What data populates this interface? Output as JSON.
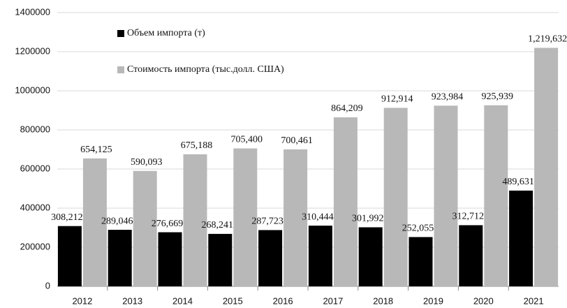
{
  "chart_data": {
    "type": "bar",
    "categories": [
      "2012",
      "2013",
      "2014",
      "2015",
      "2016",
      "2017",
      "2018",
      "2019",
      "2020",
      "2021"
    ],
    "series": [
      {
        "name": "Объем импорта (т)",
        "color": "#000000",
        "values": [
          308212,
          289046,
          276669,
          268241,
          287723,
          310444,
          301992,
          252055,
          312712,
          489631
        ],
        "value_labels": [
          "308,212",
          "289,046",
          "276,669",
          "268,241",
          "287,723",
          "310,444",
          "301,992",
          "252,055",
          "312,712",
          "489,631"
        ]
      },
      {
        "name": "Стоимость импорта (тыс.долл. США)",
        "color": "#b8b8b8",
        "values": [
          654125,
          590093,
          675188,
          705400,
          700461,
          864209,
          912914,
          923984,
          925939,
          1219632
        ],
        "value_labels": [
          "654,125",
          "590,093",
          "675,188",
          "705,400",
          "700,461",
          "864,209",
          "912,914",
          "923,984",
          "925,939",
          "1,219,632"
        ]
      }
    ],
    "ylim": [
      0,
      1400000
    ],
    "yticks": [
      0,
      200000,
      400000,
      600000,
      800000,
      1000000,
      1200000,
      1400000
    ],
    "grid": true,
    "legend": "upper left"
  }
}
